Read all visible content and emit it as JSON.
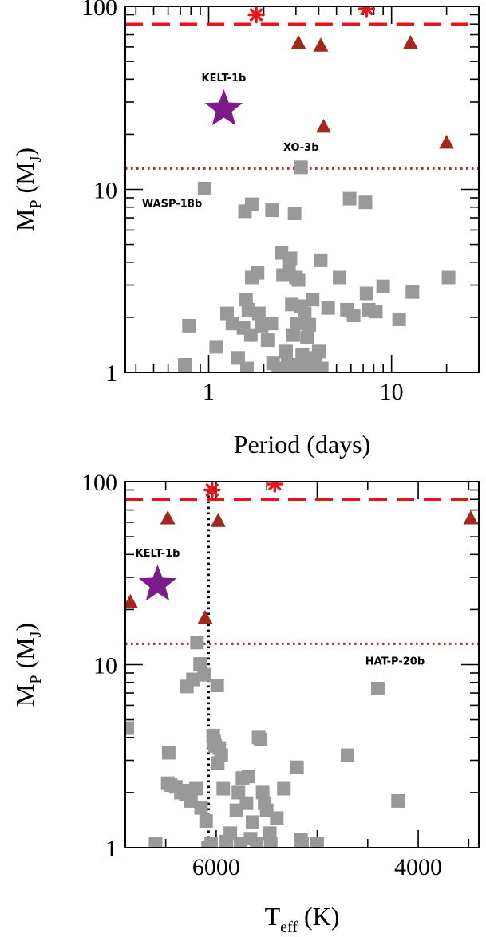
{
  "chart_data": [
    {
      "type": "scatter",
      "xscale": "log",
      "yscale": "log",
      "xlim": [
        0.35,
        30
      ],
      "ylim": [
        1,
        100
      ],
      "xlabel": "Period (days)",
      "ylabel": {
        "main": "M",
        "sub1": "P",
        "paren_open": " (M",
        "sub2": "J",
        "paren_close": ")"
      },
      "xticks": [
        {
          "value": 1,
          "label": "1"
        },
        {
          "value": 10,
          "label": "10"
        }
      ],
      "yticks": [
        {
          "value": 1,
          "label": "1"
        },
        {
          "value": 10,
          "label": "10"
        },
        {
          "value": 100,
          "label": "100"
        }
      ],
      "hlines": [
        {
          "name": "dashed",
          "y": 80,
          "style": "dashed",
          "color": "#e8141b"
        },
        {
          "name": "dotted",
          "y": 13,
          "style": "dotted",
          "color": "#a0302a"
        }
      ],
      "vlines": [],
      "series": [
        {
          "marker": "square",
          "color": "#999999",
          "points": [
            [
              0.95,
              10.1
            ],
            [
              1.58,
              7.6
            ],
            [
              1.72,
              8.3
            ],
            [
              2.22,
              7.7
            ],
            [
              2.95,
              7.4
            ],
            [
              3.2,
              13.2
            ],
            [
              5.9,
              8.9
            ],
            [
              7.2,
              8.5
            ],
            [
              0.78,
              1.8
            ],
            [
              0.74,
              1.1
            ],
            [
              1.1,
              1.38
            ],
            [
              1.26,
              2.1
            ],
            [
              1.35,
              1.85
            ],
            [
              1.45,
              1.2
            ],
            [
              1.55,
              1.75
            ],
            [
              1.6,
              2.5
            ],
            [
              1.65,
              2.2
            ],
            [
              1.62,
              1.05
            ],
            [
              1.7,
              1.6
            ],
            [
              1.72,
              3.3
            ],
            [
              1.85,
              3.5
            ],
            [
              1.88,
              2.1
            ],
            [
              1.95,
              1.8
            ],
            [
              2.1,
              1.5
            ],
            [
              2.2,
              1.85
            ],
            [
              2.25,
              1.12
            ],
            [
              2.4,
              1.05
            ],
            [
              2.5,
              4.5
            ],
            [
              2.55,
              3.4
            ],
            [
              2.65,
              1.3
            ],
            [
              2.7,
              1.1
            ],
            [
              2.75,
              3.9
            ],
            [
              2.8,
              4.2
            ],
            [
              2.85,
              2.35
            ],
            [
              2.9,
              1.6
            ],
            [
              2.95,
              1.0
            ],
            [
              3.0,
              3.3
            ],
            [
              3.05,
              1.85
            ],
            [
              3.1,
              3.2
            ],
            [
              3.15,
              1.1
            ],
            [
              3.2,
              2.3
            ],
            [
              3.25,
              1.25
            ],
            [
              3.3,
              1.05
            ],
            [
              3.35,
              2.1
            ],
            [
              3.45,
              1.55
            ],
            [
              3.55,
              1.82
            ],
            [
              3.7,
              2.5
            ],
            [
              3.75,
              1.08
            ],
            [
              3.85,
              1.2
            ],
            [
              4.0,
              1.3
            ],
            [
              4.1,
              4.1
            ],
            [
              4.15,
              1.05
            ],
            [
              4.5,
              2.25
            ],
            [
              5.2,
              3.3
            ],
            [
              5.7,
              2.2
            ],
            [
              6.2,
              2.05
            ],
            [
              7.3,
              2.7
            ],
            [
              7.5,
              2.2
            ],
            [
              8.2,
              2.15
            ],
            [
              9.0,
              2.95
            ],
            [
              11.0,
              1.95
            ],
            [
              13.0,
              2.75
            ],
            [
              20.5,
              3.3
            ]
          ]
        },
        {
          "marker": "triangle",
          "color": "#a3271f",
          "points": [
            [
              3.1,
              63
            ],
            [
              4.1,
              61
            ],
            [
              12.7,
              63
            ],
            [
              4.25,
              22
            ],
            [
              20.0,
              18
            ]
          ]
        },
        {
          "marker": "asterisk",
          "color": "#e8141b",
          "points": [
            [
              1.82,
              90
            ],
            [
              7.3,
              97
            ]
          ]
        },
        {
          "marker": "star",
          "color": "#7b1a88",
          "points": [
            [
              1.21,
              27.4
            ]
          ]
        }
      ],
      "annotations": [
        {
          "text": "KELT-1b",
          "x": 1.21,
          "y": 39
        },
        {
          "text": "XO-3b",
          "x": 3.2,
          "y": 16.3
        },
        {
          "text": "WASP-18b",
          "x": 0.63,
          "y": 8.0
        }
      ]
    },
    {
      "type": "scatter",
      "xscale": "linear",
      "xreversed": true,
      "yscale": "log",
      "xlim": [
        6900,
        3400
      ],
      "ylim": [
        1,
        100
      ],
      "xlabel": {
        "main": "T",
        "sub": "eff",
        "rest": " (K)"
      },
      "ylabel": {
        "main": "M",
        "sub1": "P",
        "paren_open": " (M",
        "sub2": "J",
        "paren_close": ")"
      },
      "xticks": [
        {
          "value": 6000,
          "label": "6000"
        },
        {
          "value": 4000,
          "label": "4000"
        }
      ],
      "yticks": [
        {
          "value": 1,
          "label": "1"
        },
        {
          "value": 10,
          "label": "10"
        },
        {
          "value": 100,
          "label": "100"
        }
      ],
      "hlines": [
        {
          "name": "dashed",
          "y": 80,
          "style": "dashed",
          "color": "#e8141b"
        },
        {
          "name": "dotted",
          "y": 13,
          "style": "dotted",
          "color": "#a0302a"
        }
      ],
      "vlines": [
        {
          "name": "dotted-vertical",
          "x": 6075,
          "style": "dotted",
          "color": "#000000"
        }
      ],
      "series": [
        {
          "marker": "square",
          "color": "#999999",
          "points": [
            [
              6880,
              4.5
            ],
            [
              6600,
              1.05
            ],
            [
              6470,
              3.3
            ],
            [
              6190,
              13.2
            ],
            [
              6160,
              10.1
            ],
            [
              6120,
              8.8
            ],
            [
              6290,
              7.6
            ],
            [
              6230,
              8.3
            ],
            [
              5990,
              7.7
            ],
            [
              4400,
              7.4
            ],
            [
              6450,
              2.2
            ],
            [
              6400,
              2.15
            ],
            [
              6350,
              2.0
            ],
            [
              6300,
              1.95
            ],
            [
              6280,
              2.05
            ],
            [
              6250,
              1.8
            ],
            [
              6200,
              2.1
            ],
            [
              6150,
              1.65
            ],
            [
              6100,
              1.4
            ],
            [
              6080,
              1.0
            ],
            [
              6050,
              1.05
            ],
            [
              5985,
              2.9
            ],
            [
              6030,
              4.1
            ],
            [
              6020,
              3.8
            ],
            [
              6010,
              3.6
            ],
            [
              5970,
              3.5
            ],
            [
              5950,
              3.2
            ],
            [
              5930,
              2.1
            ],
            [
              5900,
              1.08
            ],
            [
              5860,
              1.2
            ],
            [
              5800,
              1.6
            ],
            [
              5780,
              2.0
            ],
            [
              5760,
              1.05
            ],
            [
              5740,
              2.4
            ],
            [
              5700,
              1.75
            ],
            [
              5680,
              2.45
            ],
            [
              5660,
              1.12
            ],
            [
              5640,
              1.38
            ],
            [
              5600,
              1.05
            ],
            [
              5580,
              4.0
            ],
            [
              5560,
              3.9
            ],
            [
              5540,
              2.0
            ],
            [
              5520,
              1.75
            ],
            [
              5500,
              1.6
            ],
            [
              5470,
              1.2
            ],
            [
              5460,
              1.05
            ],
            [
              5400,
              1.45
            ],
            [
              5330,
              2.1
            ],
            [
              5200,
              2.75
            ],
            [
              5160,
              1.1
            ],
            [
              5150,
              1.05
            ],
            [
              5000,
              1.05
            ],
            [
              4700,
              3.2
            ],
            [
              4200,
              1.8
            ],
            [
              6480,
              2.25
            ]
          ]
        },
        {
          "marker": "triangle",
          "color": "#a3271f",
          "points": [
            [
              6480,
              63
            ],
            [
              5980,
              61
            ],
            [
              3480,
              63
            ],
            [
              6850,
              22
            ],
            [
              6110,
              18
            ]
          ]
        },
        {
          "marker": "asterisk",
          "color": "#e8141b",
          "points": [
            [
              6040,
              90
            ],
            [
              5420,
              97
            ]
          ]
        },
        {
          "marker": "star",
          "color": "#7b1a88",
          "points": [
            [
              6580,
              27.4
            ]
          ]
        }
      ],
      "annotations": [
        {
          "text": "KELT-1b",
          "x": 6580,
          "y": 39
        },
        {
          "text": "HAT-P-20b",
          "x": 4230,
          "y": 10.0
        }
      ]
    }
  ]
}
